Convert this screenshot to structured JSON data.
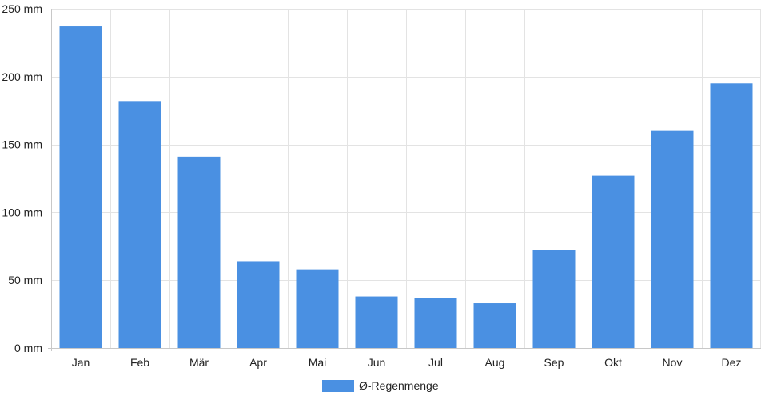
{
  "chart_data": {
    "type": "bar",
    "categories": [
      "Jan",
      "Feb",
      "Mär",
      "Apr",
      "Mai",
      "Jun",
      "Jul",
      "Aug",
      "Sep",
      "Okt",
      "Nov",
      "Dez"
    ],
    "series": [
      {
        "name": "Ø-Regenmenge",
        "color": "#4a90e2",
        "values": [
          237,
          182,
          141,
          64,
          58,
          38,
          37,
          33,
          72,
          127,
          160,
          195
        ]
      }
    ],
    "ylim": [
      0,
      250
    ],
    "yticks": [
      0,
      50,
      100,
      150,
      200,
      250
    ],
    "ytick_labels": [
      "0 mm",
      "50 mm",
      "100 mm",
      "150 mm",
      "200 mm",
      "250 mm"
    ],
    "grid": true,
    "legend_position": "bottom-center",
    "title": "",
    "xlabel": "",
    "ylabel": ""
  }
}
